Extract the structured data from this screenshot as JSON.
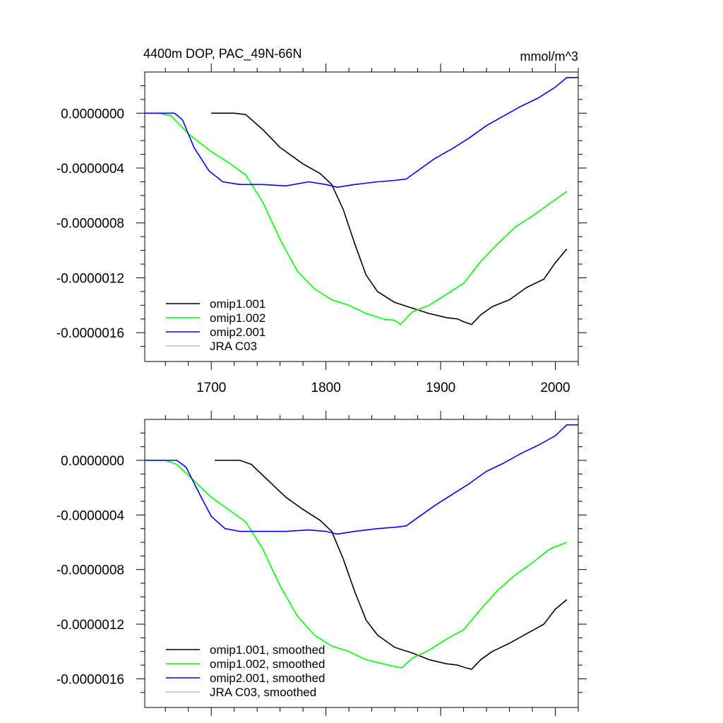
{
  "chart_data": [
    {
      "type": "line",
      "title": "4400m DOP, PAC_49N-66N",
      "units_label": "mmol/m^3",
      "xlim": [
        1642,
        2020
      ],
      "ylim": [
        -1.81e-06,
        3e-07
      ],
      "x_ticks": [
        1700,
        1800,
        1900,
        2000
      ],
      "y_ticks": [
        0,
        -4e-07,
        -8e-07,
        -1.2e-06,
        -1.6e-06
      ],
      "y_tick_labels": [
        "0.0000000",
        "-0.0000004",
        "-0.0000008",
        "-0.0000012",
        "-0.0000016"
      ],
      "x_tick_labels": [
        "1700",
        "1800",
        "1900",
        "2000"
      ],
      "legend": {
        "position": "bottom-left"
      },
      "series": [
        {
          "name": "omip1.001",
          "color": "#000000",
          "points": [
            [
              1700,
              0
            ],
            [
              1720,
              0
            ],
            [
              1730,
              -1e-08
            ],
            [
              1745,
              -1.2e-07
            ],
            [
              1760,
              -2.5e-07
            ],
            [
              1780,
              -3.7e-07
            ],
            [
              1795,
              -4.4e-07
            ],
            [
              1805,
              -5.2e-07
            ],
            [
              1815,
              -7e-07
            ],
            [
              1825,
              -9.5e-07
            ],
            [
              1835,
              -1.18e-06
            ],
            [
              1845,
              -1.3e-06
            ],
            [
              1860,
              -1.38e-06
            ],
            [
              1875,
              -1.42e-06
            ],
            [
              1890,
              -1.46e-06
            ],
            [
              1905,
              -1.49e-06
            ],
            [
              1915,
              -1.5e-06
            ],
            [
              1920,
              -1.52e-06
            ],
            [
              1927,
              -1.54e-06
            ],
            [
              1935,
              -1.47e-06
            ],
            [
              1945,
              -1.41e-06
            ],
            [
              1960,
              -1.36e-06
            ],
            [
              1975,
              -1.27e-06
            ],
            [
              1990,
              -1.21e-06
            ],
            [
              2000,
              -1.09e-06
            ],
            [
              2010,
              -9.9e-07
            ]
          ]
        },
        {
          "name": "omip1.002",
          "color": "#00ff00",
          "points": [
            [
              1642,
              0
            ],
            [
              1655,
              0
            ],
            [
              1665,
              -2e-08
            ],
            [
              1680,
              -1.5e-07
            ],
            [
              1700,
              -2.8e-07
            ],
            [
              1715,
              -3.6e-07
            ],
            [
              1730,
              -4.5e-07
            ],
            [
              1745,
              -6.5e-07
            ],
            [
              1760,
              -9.2e-07
            ],
            [
              1775,
              -1.15e-06
            ],
            [
              1790,
              -1.28e-06
            ],
            [
              1805,
              -1.36e-06
            ],
            [
              1820,
              -1.4e-06
            ],
            [
              1835,
              -1.46e-06
            ],
            [
              1850,
              -1.5e-06
            ],
            [
              1860,
              -1.51e-06
            ],
            [
              1865,
              -1.54e-06
            ],
            [
              1875,
              -1.45e-06
            ],
            [
              1890,
              -1.4e-06
            ],
            [
              1905,
              -1.32e-06
            ],
            [
              1920,
              -1.24e-06
            ],
            [
              1935,
              -1.08e-06
            ],
            [
              1950,
              -9.5e-07
            ],
            [
              1965,
              -8.3e-07
            ],
            [
              1980,
              -7.5e-07
            ],
            [
              1995,
              -6.6e-07
            ],
            [
              2010,
              -5.7e-07
            ]
          ]
        },
        {
          "name": "omip2.001",
          "color": "#0000ff",
          "points": [
            [
              1642,
              0
            ],
            [
              1655,
              0
            ],
            [
              1668,
              0
            ],
            [
              1675,
              -5e-08
            ],
            [
              1685,
              -2.5e-07
            ],
            [
              1698,
              -4.2e-07
            ],
            [
              1710,
              -5e-07
            ],
            [
              1725,
              -5.2e-07
            ],
            [
              1745,
              -5.2e-07
            ],
            [
              1765,
              -5.3e-07
            ],
            [
              1785,
              -5e-07
            ],
            [
              1800,
              -5.2e-07
            ],
            [
              1810,
              -5.4e-07
            ],
            [
              1825,
              -5.2e-07
            ],
            [
              1845,
              -5e-07
            ],
            [
              1860,
              -4.9e-07
            ],
            [
              1870,
              -4.8e-07
            ],
            [
              1880,
              -4.2e-07
            ],
            [
              1895,
              -3.3e-07
            ],
            [
              1910,
              -2.6e-07
            ],
            [
              1925,
              -1.8e-07
            ],
            [
              1940,
              -9e-08
            ],
            [
              1955,
              -2e-08
            ],
            [
              1970,
              5e-08
            ],
            [
              1985,
              1.1e-07
            ],
            [
              2000,
              1.9e-07
            ],
            [
              2010,
              2.6e-07
            ],
            [
              2020,
              2.6e-07
            ]
          ]
        },
        {
          "name": "JRA C03",
          "color": "#bbbbbb",
          "points": []
        }
      ]
    },
    {
      "type": "line",
      "title": "",
      "xlim": [
        1642,
        2020
      ],
      "ylim": [
        -1.81e-06,
        3e-07
      ],
      "x_ticks": [
        1700,
        1800,
        1900,
        2000
      ],
      "y_ticks": [
        0,
        -4e-07,
        -8e-07,
        -1.2e-06,
        -1.6e-06
      ],
      "y_tick_labels": [
        "0.0000000",
        "-0.0000004",
        "-0.0000008",
        "-0.0000012",
        "-0.0000016"
      ],
      "x_tick_labels": [],
      "legend": {
        "position": "bottom-left"
      },
      "series": [
        {
          "name": "omip1.001, smoothed",
          "color": "#000000",
          "points": [
            [
              1703,
              0
            ],
            [
              1725,
              0
            ],
            [
              1735,
              -3e-08
            ],
            [
              1750,
              -1.5e-07
            ],
            [
              1765,
              -2.7e-07
            ],
            [
              1780,
              -3.6e-07
            ],
            [
              1795,
              -4.4e-07
            ],
            [
              1805,
              -5.2e-07
            ],
            [
              1815,
              -7.2e-07
            ],
            [
              1825,
              -9.6e-07
            ],
            [
              1835,
              -1.17e-06
            ],
            [
              1845,
              -1.28e-06
            ],
            [
              1860,
              -1.37e-06
            ],
            [
              1875,
              -1.41e-06
            ],
            [
              1890,
              -1.46e-06
            ],
            [
              1905,
              -1.49e-06
            ],
            [
              1915,
              -1.5e-06
            ],
            [
              1922,
              -1.52e-06
            ],
            [
              1927,
              -1.53e-06
            ],
            [
              1935,
              -1.46e-06
            ],
            [
              1945,
              -1.4e-06
            ],
            [
              1960,
              -1.34e-06
            ],
            [
              1975,
              -1.27e-06
            ],
            [
              1990,
              -1.2e-06
            ],
            [
              2000,
              -1.09e-06
            ],
            [
              2010,
              -1.02e-06
            ]
          ]
        },
        {
          "name": "omip1.002, smoothed",
          "color": "#00ff00",
          "points": [
            [
              1642,
              0
            ],
            [
              1660,
              0
            ],
            [
              1670,
              -3e-08
            ],
            [
              1685,
              -1.5e-07
            ],
            [
              1700,
              -2.7e-07
            ],
            [
              1715,
              -3.6e-07
            ],
            [
              1730,
              -4.5e-07
            ],
            [
              1745,
              -6.5e-07
            ],
            [
              1760,
              -9.2e-07
            ],
            [
              1775,
              -1.14e-06
            ],
            [
              1790,
              -1.28e-06
            ],
            [
              1805,
              -1.36e-06
            ],
            [
              1820,
              -1.4e-06
            ],
            [
              1835,
              -1.46e-06
            ],
            [
              1850,
              -1.49e-06
            ],
            [
              1860,
              -1.51e-06
            ],
            [
              1866,
              -1.52e-06
            ],
            [
              1875,
              -1.45e-06
            ],
            [
              1890,
              -1.39e-06
            ],
            [
              1905,
              -1.31e-06
            ],
            [
              1920,
              -1.24e-06
            ],
            [
              1935,
              -1.09e-06
            ],
            [
              1950,
              -9.5e-07
            ],
            [
              1965,
              -8.4e-07
            ],
            [
              1980,
              -7.5e-07
            ],
            [
              1995,
              -6.5e-07
            ],
            [
              2010,
              -6e-07
            ]
          ]
        },
        {
          "name": "omip2.001, smoothed",
          "color": "#0000ff",
          "points": [
            [
              1642,
              0
            ],
            [
              1660,
              0
            ],
            [
              1670,
              0
            ],
            [
              1678,
              -5e-08
            ],
            [
              1690,
              -2.5e-07
            ],
            [
              1700,
              -4.1e-07
            ],
            [
              1712,
              -5e-07
            ],
            [
              1725,
              -5.2e-07
            ],
            [
              1745,
              -5.2e-07
            ],
            [
              1765,
              -5.2e-07
            ],
            [
              1785,
              -5.1e-07
            ],
            [
              1800,
              -5.2e-07
            ],
            [
              1810,
              -5.4e-07
            ],
            [
              1825,
              -5.2e-07
            ],
            [
              1845,
              -5e-07
            ],
            [
              1860,
              -4.9e-07
            ],
            [
              1870,
              -4.8e-07
            ],
            [
              1880,
              -4.2e-07
            ],
            [
              1895,
              -3.3e-07
            ],
            [
              1910,
              -2.5e-07
            ],
            [
              1925,
              -1.7e-07
            ],
            [
              1940,
              -8e-08
            ],
            [
              1955,
              -2e-08
            ],
            [
              1970,
              5e-08
            ],
            [
              1985,
              1.1e-07
            ],
            [
              2000,
              1.8e-07
            ],
            [
              2010,
              2.6e-07
            ],
            [
              2020,
              2.6e-07
            ]
          ]
        },
        {
          "name": "JRA C03, smoothed",
          "color": "#bbbbbb",
          "points": []
        }
      ]
    }
  ]
}
